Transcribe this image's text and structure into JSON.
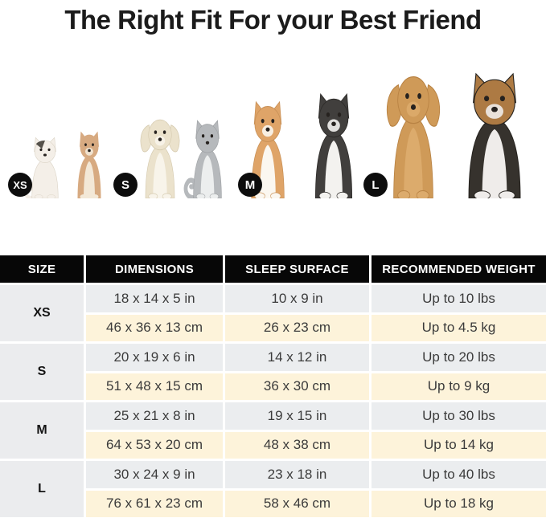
{
  "title": "The Right Fit For your Best Friend",
  "hero": {
    "groups": [
      {
        "badge": "XS",
        "animals": [
          "white-calico-cat",
          "chihuahua"
        ]
      },
      {
        "badge": "S",
        "animals": [
          "maltese-puppy",
          "gray-white-cat"
        ]
      },
      {
        "badge": "M",
        "animals": [
          "corgi",
          "border-collie"
        ]
      },
      {
        "badge": "L",
        "animals": [
          "golden-retriever",
          "rough-collie"
        ]
      }
    ]
  },
  "table": {
    "headers": [
      "SIZE",
      "DIMENSIONS",
      "SLEEP SURFACE",
      "RECOMMENDED WEIGHT"
    ],
    "groups": [
      {
        "size": "XS",
        "rows": [
          [
            "18 x 14 x 5 in",
            "10 x 9 in",
            "Up to 10 lbs"
          ],
          [
            "46 x 36 x 13 cm",
            "26 x 23 cm",
            "Up to 4.5 kg"
          ]
        ]
      },
      {
        "size": "S",
        "rows": [
          [
            "20 x 19 x 6 in",
            "14 x 12 in",
            "Up to 20 lbs"
          ],
          [
            "51 x 48 x 15 cm",
            "36 x 30 cm",
            "Up to 9 kg"
          ]
        ]
      },
      {
        "size": "M",
        "rows": [
          [
            "25 x 21 x 8 in",
            "19 x 15 in",
            "Up to 30 lbs"
          ],
          [
            "64 x 53 x 20 cm",
            "48 x 38 cm",
            "Up to 14 kg"
          ]
        ]
      },
      {
        "size": "L",
        "rows": [
          [
            "30 x 24 x 9 in",
            "23 x 18 in",
            "Up to 40 lbs"
          ],
          [
            "76 x 61 x 23 cm",
            "58 x 46 cm",
            "Up to 18 kg"
          ]
        ]
      }
    ],
    "colors": {
      "header_bg": "#070707",
      "header_text": "#ffffff",
      "inch_row_bg": "#ebedef",
      "cm_row_bg": "#fdf3da",
      "size_col_bg": "#ebecee",
      "badge_bg": "#0d0d0d",
      "badge_text": "#ffffff"
    }
  }
}
